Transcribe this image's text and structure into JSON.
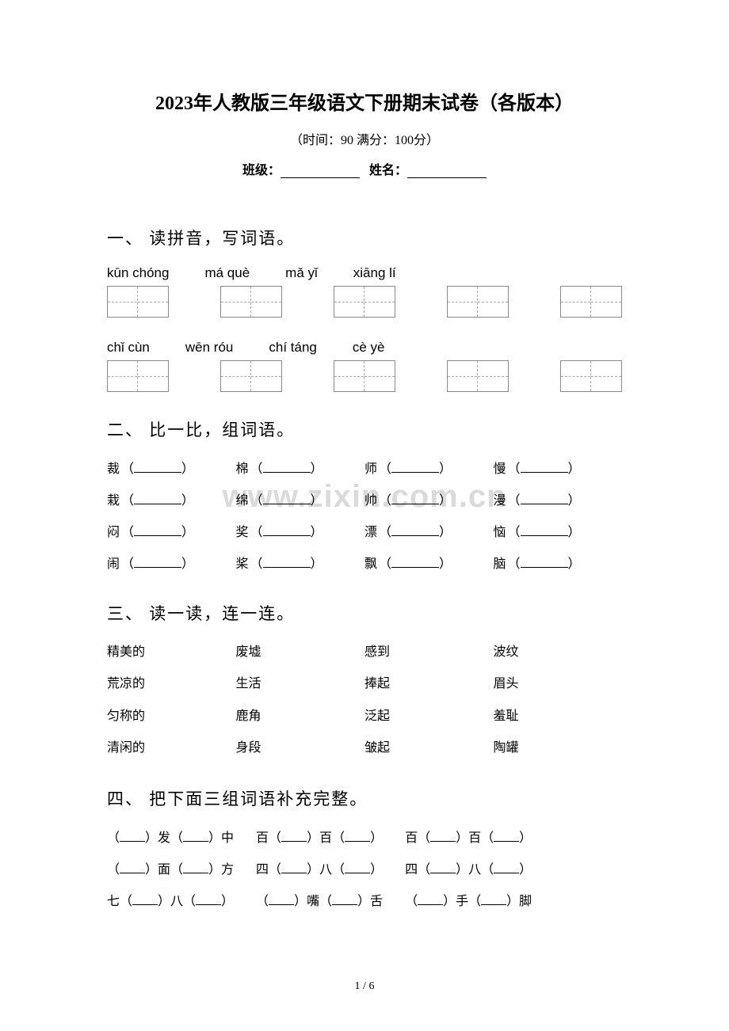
{
  "title": "2023年人教版三年级语文下册期末试卷（各版本）",
  "time_info": "（时间：90   满分：100分）",
  "class_label": "班级：",
  "name_label": "姓名：",
  "section1": {
    "header": "一、 读拼音，写词语。",
    "row1": [
      "kūn chóng",
      "má què",
      "mǎ  yǐ",
      "xiāng lí"
    ],
    "row2": [
      "chǐ  cùn",
      "wēn róu",
      "chí  táng",
      "cè  yè"
    ]
  },
  "section2": {
    "header": "二、 比一比，组词语。",
    "rows": [
      [
        "裁",
        "棉",
        "师",
        "慢"
      ],
      [
        "栽",
        "绵",
        "帅",
        "漫"
      ],
      [
        "闷",
        "奖",
        "漂",
        "恼"
      ],
      [
        "闹",
        "桨",
        "飘",
        "脑"
      ]
    ]
  },
  "watermark": "www.zixin.com.cn",
  "section3": {
    "header": "三、 读一读，连一连。",
    "rows": [
      [
        "精美的",
        "废墟",
        "感到",
        "波纹"
      ],
      [
        "荒凉的",
        "生活",
        "捧起",
        "眉头"
      ],
      [
        "匀称的",
        "鹿角",
        "泛起",
        "羞耻"
      ],
      [
        "清闲的",
        "身段",
        "皱起",
        "陶罐"
      ]
    ]
  },
  "section4": {
    "header": "四、 把下面三组词语补充完整。",
    "rows": [
      [
        [
          "（",
          "）发（",
          "）中"
        ],
        [
          "百（",
          "）百（",
          "）"
        ],
        [
          "百（",
          "）百（",
          "）"
        ]
      ],
      [
        [
          "（",
          "）面（",
          "）方"
        ],
        [
          "四（",
          "）八（",
          "）"
        ],
        [
          "四（",
          "）八（",
          "）"
        ]
      ],
      [
        [
          "七（",
          "）八（",
          "）"
        ],
        [
          "（",
          "）嘴（",
          "）舌"
        ],
        [
          "（",
          "）手（",
          "）脚"
        ]
      ]
    ]
  },
  "pagenum": "1 / 6"
}
